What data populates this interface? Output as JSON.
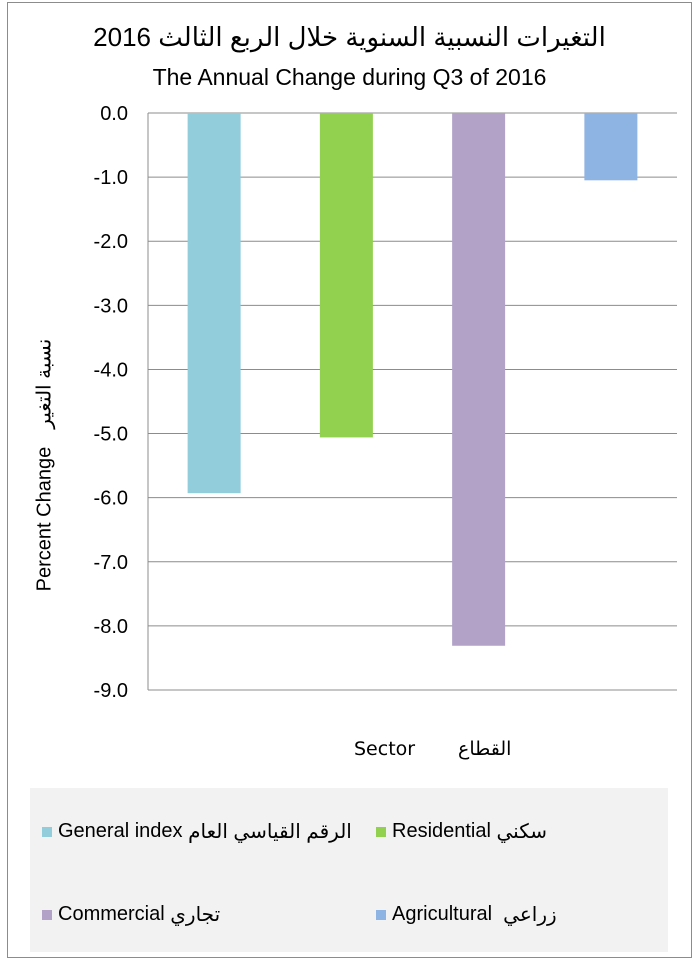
{
  "chart_data": {
    "type": "bar",
    "title": "التغيرات النسبية السنوية خلال الربع الثالث 2016",
    "subtitle": "The Annual Change during Q3 of 2016",
    "ylabel": "Percent Change",
    "ylabel_ar": "نسبة التغير",
    "xlabel": "Sector",
    "xlabel_ar": "القطاع",
    "ylim": [
      -9.0,
      0.0
    ],
    "yticks": [
      "0.0",
      "-1.0",
      "-2.0",
      "-3.0",
      "-4.0",
      "-5.0",
      "-6.0",
      "-7.0",
      "-8.0",
      "-9.0"
    ],
    "grid": true,
    "legend_position": "bottom",
    "series": [
      {
        "name": "General index الرقم القياسي العام",
        "value": -5.93,
        "color": "#92cddc"
      },
      {
        "name": "Residential سكني",
        "value": -5.06,
        "color": "#92d050"
      },
      {
        "name": "Commercial تجاري",
        "value": -8.31,
        "color": "#b3a2c7"
      },
      {
        "name": "Agricultural زراعي",
        "value": -1.05,
        "color": "#8eb4e3"
      }
    ]
  },
  "legend": {
    "general_en": "General index",
    "general_ar": "الرقم القياسي العام",
    "residential_en": "Residential",
    "residential_ar": "سكني",
    "commercial_en": "Commercial",
    "commercial_ar": "تجاري",
    "agricultural_en": "Agricultural",
    "agricultural_ar": "زراعي"
  }
}
